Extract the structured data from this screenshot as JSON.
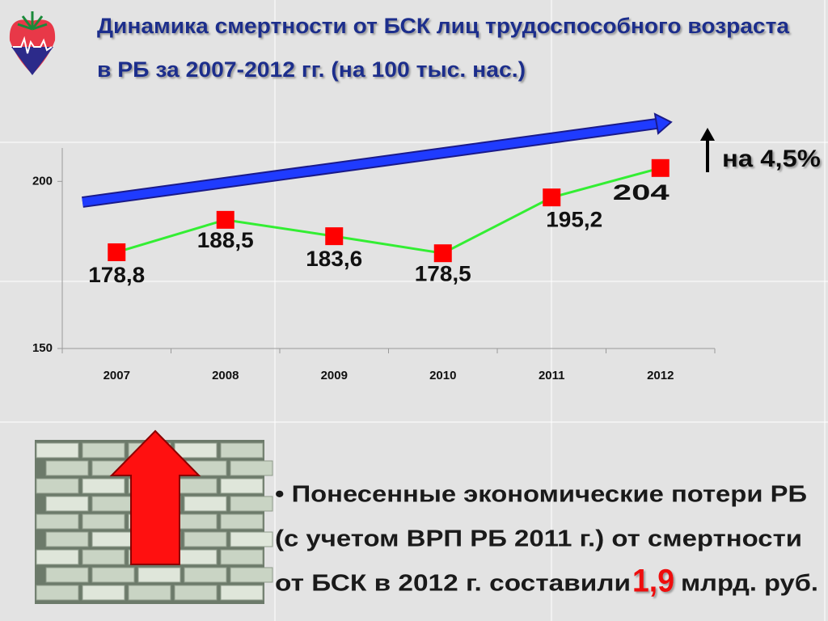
{
  "header": {
    "title_lines": [
      "Динамика смертности от БСК лиц трудоспособного возраста",
      "в РБ за 2007-2012 гг. (на 100 тыс. нас.)"
    ]
  },
  "chart_data": {
    "type": "line",
    "categories": [
      "2007",
      "2008",
      "2009",
      "2010",
      "2011",
      "2012"
    ],
    "values": [
      178.8,
      188.5,
      183.6,
      178.5,
      195.2,
      204
    ],
    "value_labels": [
      "178,8",
      "188,5",
      "183,6",
      "178,5",
      "195,2",
      "204"
    ],
    "color": "#33ee33",
    "marker_color": "#ff0000",
    "ylim": [
      150,
      210
    ],
    "yticks": [
      150,
      200
    ],
    "annotation": "на 4,5%"
  },
  "note": {
    "lines": [
      "• Понесенные экономические потери РБ",
      "(с учетом ВРП РБ 2011 г.) от смертности",
      "от БСК в 2012 г. составили"
    ],
    "highlight": "1,9",
    "tail": "млрд. руб."
  }
}
